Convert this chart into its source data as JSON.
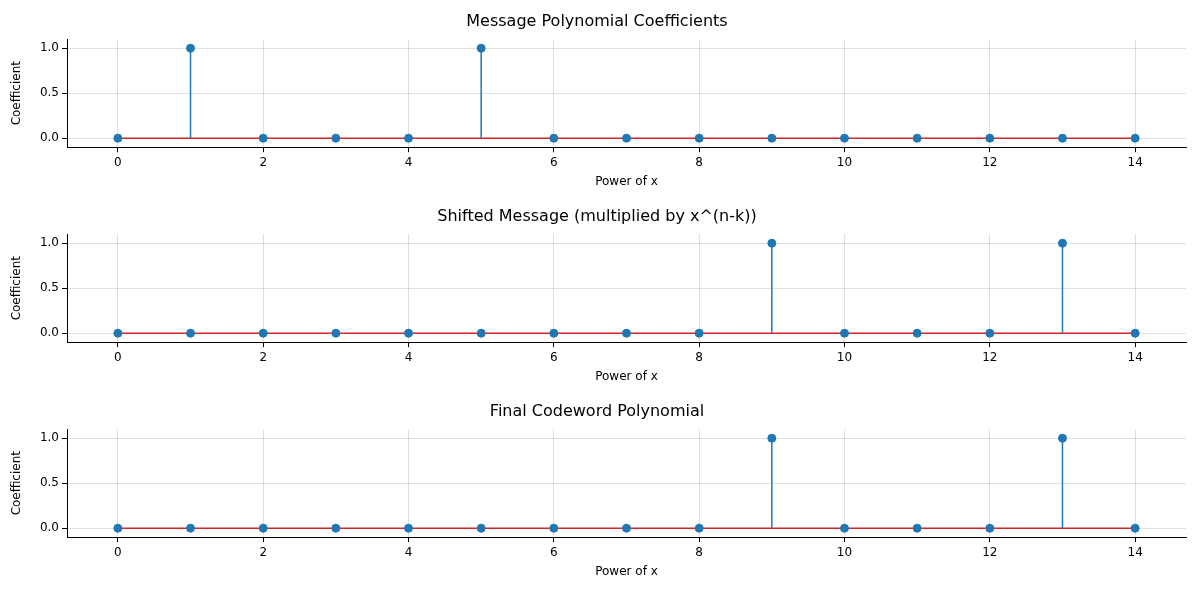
{
  "chart_data": [
    {
      "type": "lollipop",
      "title": "Message Polynomial Coefficients",
      "xlabel": "Power of x",
      "ylabel": "Coefficient",
      "x": [
        0,
        1,
        2,
        3,
        4,
        5,
        6,
        7,
        8,
        9,
        10,
        11,
        12,
        13,
        14
      ],
      "series": [
        {
          "color": "#1f77b4",
          "values": [
            0,
            1,
            0,
            0,
            0,
            1,
            0,
            0,
            0,
            0,
            0,
            0,
            0,
            0,
            0
          ]
        }
      ],
      "xlim": [
        -0.7,
        14.7
      ],
      "xticks": [
        0,
        2,
        4,
        6,
        8,
        10,
        12,
        14
      ],
      "ylim": [
        -0.1,
        1.1
      ],
      "yticks": [
        {
          "value": 0,
          "label": "0.0"
        },
        {
          "value": 0.5,
          "label": "0.5"
        },
        {
          "value": 1,
          "label": "1.0"
        }
      ],
      "ref_lines": [
        {
          "axis": "y",
          "value": 0,
          "color": "#d62728"
        }
      ],
      "grid": true,
      "marker": "circle",
      "legend": false
    },
    {
      "type": "lollipop",
      "title": "Shifted Message (multiplied by x^(n-k))",
      "xlabel": "Power of x",
      "ylabel": "Coefficient",
      "x": [
        0,
        1,
        2,
        3,
        4,
        5,
        6,
        7,
        8,
        9,
        10,
        11,
        12,
        13,
        14
      ],
      "series": [
        {
          "color": "#1f77b4",
          "values": [
            0,
            0,
            0,
            0,
            0,
            0,
            0,
            0,
            0,
            1,
            0,
            0,
            0,
            1,
            0
          ]
        }
      ],
      "xlim": [
        -0.7,
        14.7
      ],
      "xticks": [
        0,
        2,
        4,
        6,
        8,
        10,
        12,
        14
      ],
      "ylim": [
        -0.1,
        1.1
      ],
      "yticks": [
        {
          "value": 0,
          "label": "0.0"
        },
        {
          "value": 0.5,
          "label": "0.5"
        },
        {
          "value": 1,
          "label": "1.0"
        }
      ],
      "ref_lines": [
        {
          "axis": "y",
          "value": 0,
          "color": "#d62728"
        }
      ],
      "grid": true,
      "marker": "circle",
      "legend": false
    },
    {
      "type": "lollipop",
      "title": "Final Codeword Polynomial",
      "xlabel": "Power of x",
      "ylabel": "Coefficient",
      "x": [
        0,
        1,
        2,
        3,
        4,
        5,
        6,
        7,
        8,
        9,
        10,
        11,
        12,
        13,
        14
      ],
      "series": [
        {
          "color": "#1f77b4",
          "values": [
            0,
            0,
            0,
            0,
            0,
            0,
            0,
            0,
            0,
            1,
            0,
            0,
            0,
            1,
            0
          ]
        }
      ],
      "xlim": [
        -0.7,
        14.7
      ],
      "xticks": [
        0,
        2,
        4,
        6,
        8,
        10,
        12,
        14
      ],
      "ylim": [
        -0.1,
        1.1
      ],
      "yticks": [
        {
          "value": 0,
          "label": "0.0"
        },
        {
          "value": 0.5,
          "label": "0.5"
        },
        {
          "value": 1,
          "label": "1.0"
        }
      ],
      "ref_lines": [
        {
          "axis": "y",
          "value": 0,
          "color": "#d62728"
        }
      ],
      "grid": true,
      "marker": "circle",
      "legend": false
    }
  ]
}
